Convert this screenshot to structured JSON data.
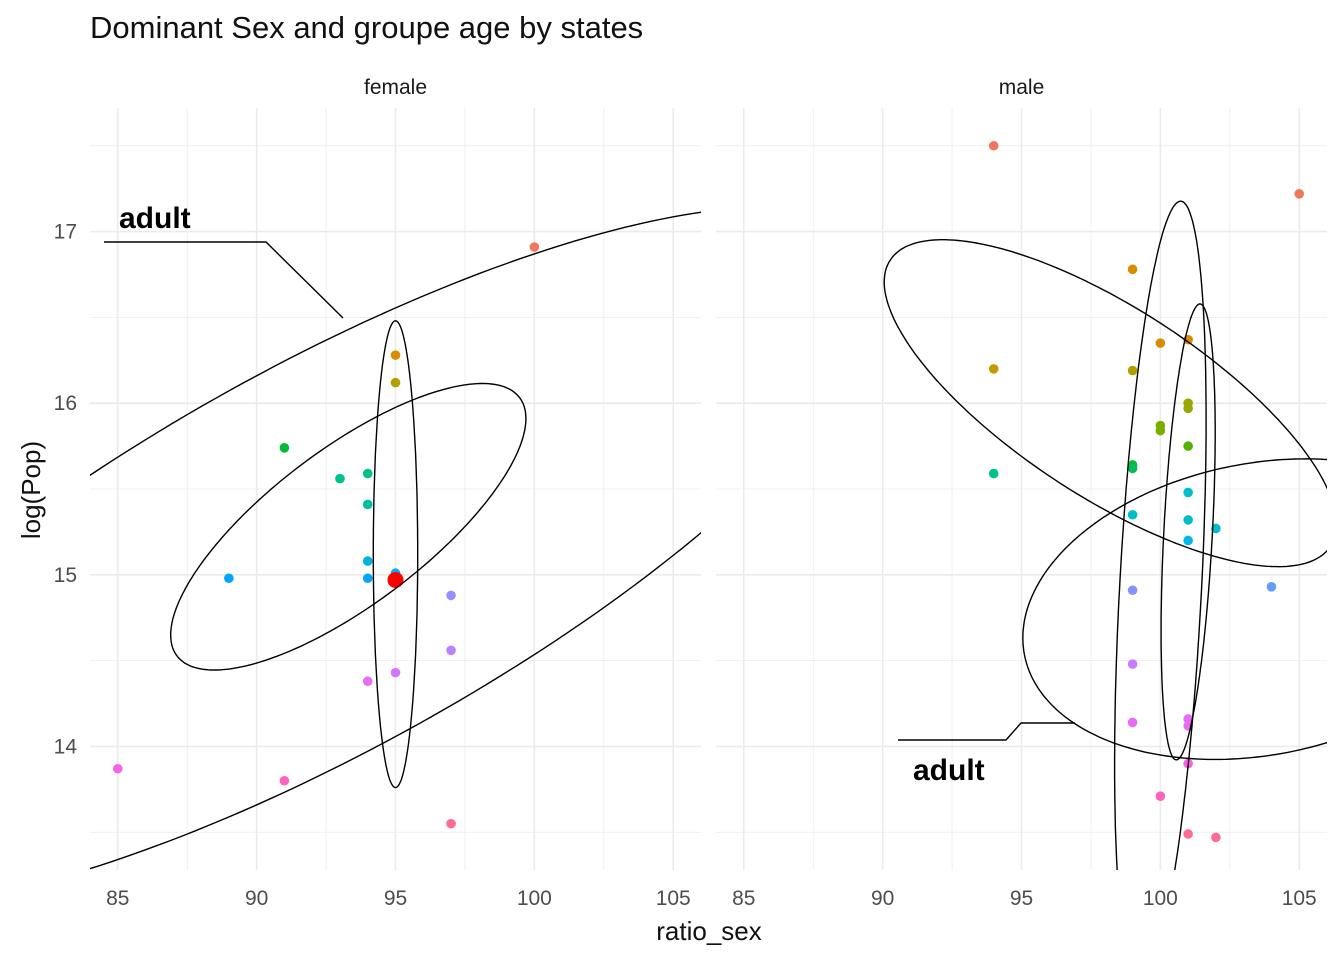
{
  "chart_data": {
    "type": "scatter",
    "title": "Dominant Sex and groupe age by states",
    "xlabel": "ratio_sex",
    "ylabel": "log(Pop)",
    "xlim": [
      84,
      106
    ],
    "ylim": [
      13.28,
      17.72
    ],
    "x_ticks": [
      85,
      90,
      95,
      100,
      105
    ],
    "y_ticks": [
      14,
      15,
      16,
      17
    ],
    "grid": true,
    "facets": [
      {
        "name": "female",
        "annotation": "adult",
        "points": [
          {
            "x": 100,
            "y": 16.91,
            "color": "#F0785C"
          },
          {
            "x": 95,
            "y": 16.28,
            "color": "#D98C00"
          },
          {
            "x": 95,
            "y": 16.12,
            "color": "#B3A000"
          },
          {
            "x": 91,
            "y": 15.74,
            "color": "#00BA38"
          },
          {
            "x": 94,
            "y": 15.59,
            "color": "#00C08B"
          },
          {
            "x": 93,
            "y": 15.56,
            "color": "#00C08B"
          },
          {
            "x": 94,
            "y": 15.41,
            "color": "#00BF9F"
          },
          {
            "x": 94,
            "y": 15.08,
            "color": "#00B4D8"
          },
          {
            "x": 95,
            "y": 15.01,
            "color": "#00B0F6"
          },
          {
            "x": 89,
            "y": 14.98,
            "color": "#00A5FF"
          },
          {
            "x": 94,
            "y": 14.98,
            "color": "#00A5FF"
          },
          {
            "x": 95,
            "y": 14.98,
            "color": "#00A5FF"
          },
          {
            "x": 97,
            "y": 14.88,
            "color": "#9590FF"
          },
          {
            "x": 97,
            "y": 14.56,
            "color": "#B983FF"
          },
          {
            "x": 95,
            "y": 14.43,
            "color": "#D575FE"
          },
          {
            "x": 94,
            "y": 14.38,
            "color": "#E76BF3"
          },
          {
            "x": 85,
            "y": 13.87,
            "color": "#F564E3"
          },
          {
            "x": 91,
            "y": 13.8,
            "color": "#FF62BC"
          },
          {
            "x": 97,
            "y": 13.55,
            "color": "#FF6C91"
          }
        ],
        "highlight": {
          "x": 95,
          "y": 14.97,
          "color": "#FF0000"
        },
        "ellipses": [
          {
            "cx": 93.3,
            "cy": 15.28,
            "sx": 5.6,
            "sy": 1.25,
            "rot": -53
          },
          {
            "cx": 92.4,
            "cy": 15.1,
            "sx": 13.8,
            "sy": 3.7,
            "rot": -61
          },
          {
            "cx": 95,
            "cy": 15.12,
            "sx": 1.6,
            "sy": 1.36,
            "rot": 0
          }
        ]
      },
      {
        "name": "male",
        "annotation": "adult",
        "points": [
          {
            "x": 94,
            "y": 17.5,
            "color": "#F0785C"
          },
          {
            "x": 105,
            "y": 17.22,
            "color": "#F0785C"
          },
          {
            "x": 99,
            "y": 16.78,
            "color": "#D98C00"
          },
          {
            "x": 101,
            "y": 16.37,
            "color": "#D98C00"
          },
          {
            "x": 100,
            "y": 16.35,
            "color": "#D98C00"
          },
          {
            "x": 94,
            "y": 16.2,
            "color": "#C49A00"
          },
          {
            "x": 99,
            "y": 16.19,
            "color": "#B3A000"
          },
          {
            "x": 101,
            "y": 16.0,
            "color": "#99A800"
          },
          {
            "x": 101,
            "y": 15.97,
            "color": "#99A800"
          },
          {
            "x": 100,
            "y": 15.87,
            "color": "#7CAE00"
          },
          {
            "x": 100,
            "y": 15.84,
            "color": "#7CAE00"
          },
          {
            "x": 101,
            "y": 15.75,
            "color": "#53B400"
          },
          {
            "x": 99,
            "y": 15.64,
            "color": "#00BA38"
          },
          {
            "x": 99,
            "y": 15.62,
            "color": "#00BC59"
          },
          {
            "x": 94,
            "y": 15.59,
            "color": "#00C08B"
          },
          {
            "x": 101,
            "y": 15.48,
            "color": "#00BFC4"
          },
          {
            "x": 99,
            "y": 15.35,
            "color": "#00BFC4"
          },
          {
            "x": 101,
            "y": 15.32,
            "color": "#00BFC4"
          },
          {
            "x": 102,
            "y": 15.27,
            "color": "#00BCD8"
          },
          {
            "x": 101,
            "y": 15.2,
            "color": "#00B8E7"
          },
          {
            "x": 104,
            "y": 14.93,
            "color": "#619CFF"
          },
          {
            "x": 99,
            "y": 14.91,
            "color": "#8494FF"
          },
          {
            "x": 99,
            "y": 14.48,
            "color": "#C77CFF"
          },
          {
            "x": 101,
            "y": 14.16,
            "color": "#E76BF3"
          },
          {
            "x": 99,
            "y": 14.14,
            "color": "#E76BF3"
          },
          {
            "x": 101,
            "y": 14.12,
            "color": "#E76BF3"
          },
          {
            "x": 101,
            "y": 13.9,
            "color": "#F564E3"
          },
          {
            "x": 100,
            "y": 13.71,
            "color": "#FF62BC"
          },
          {
            "x": 101,
            "y": 13.49,
            "color": "#FF6C91"
          },
          {
            "x": 102,
            "y": 13.47,
            "color": "#FF6C91"
          }
        ],
        "ellipses": [
          {
            "cx": 98.2,
            "cy": 16.0,
            "sx": 6.8,
            "sy": 1.53,
            "rot": 57
          },
          {
            "cx": 100,
            "cy": 14.9,
            "sx": 2.95,
            "sy": 2.28,
            "rot": -3
          },
          {
            "cx": 101,
            "cy": 15.25,
            "sx": 1.75,
            "sy": 1.33,
            "rot": -3
          },
          {
            "cx": 103.6,
            "cy": 14.8,
            "sx": 10.5,
            "sy": 1.4,
            "rot": -79
          }
        ]
      }
    ]
  }
}
